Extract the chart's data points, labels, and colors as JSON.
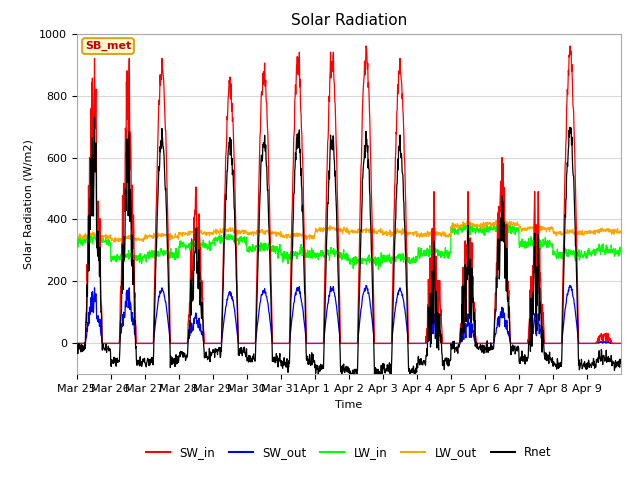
{
  "title": "Solar Radiation",
  "ylabel": "Solar Radiation (W/m2)",
  "xlabel": "Time",
  "ylim": [
    -100,
    1000
  ],
  "annotation_text": "SB_met",
  "annotation_color": "#CC0000",
  "annotation_bg": "#FFFACD",
  "annotation_border": "#DAA520",
  "plot_bg": "#FFFFFF",
  "fig_bg": "#FFFFFF",
  "grid_color": "#D8D8D8",
  "series_colors": {
    "SW_in": "red",
    "SW_out": "blue",
    "LW_in": "lime",
    "LW_out": "orange",
    "Rnet": "black"
  },
  "xtick_labels": [
    "Mar 25",
    "Mar 26",
    "Mar 27",
    "Mar 28",
    "Mar 29",
    "Mar 30",
    "Mar 31",
    "Apr 1",
    "Apr 2",
    "Apr 3",
    "Apr 4",
    "Apr 5",
    "Apr 6",
    "Apr 7",
    "Apr 8",
    "Apr 9"
  ],
  "n_days": 16,
  "hours_per_day": 24,
  "dt_hours": 0.25,
  "legend_loc": "lower center",
  "legend_ncol": 5,
  "figsize": [
    6.4,
    4.8
  ],
  "dpi": 100
}
